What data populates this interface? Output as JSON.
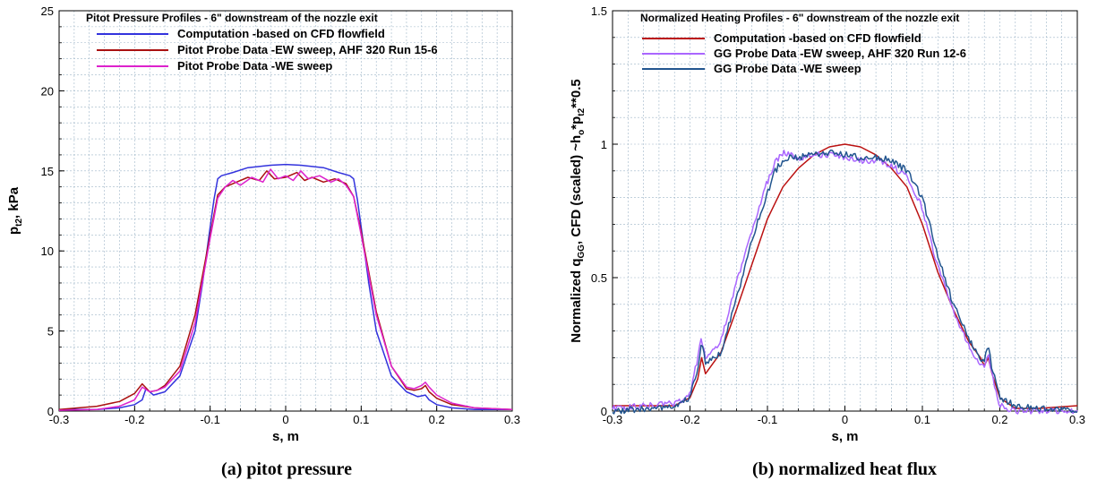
{
  "chart_data": [
    {
      "type": "line",
      "title": "Pitot Pressure Profiles - 6\" downstream of the nozzle exit",
      "caption": "(a) pitot pressure",
      "xlabel": "s, m",
      "ylabel_main": "p",
      "ylabel_sub": "t2",
      "ylabel_rest": ", kPa",
      "xlim": [
        -0.3,
        0.3
      ],
      "ylim": [
        0,
        25
      ],
      "xticks": [
        -0.3,
        -0.2,
        -0.1,
        0,
        0.1,
        0.2,
        0.3
      ],
      "xtick_labels": [
        "-0.3",
        "-0.2",
        "-0.1",
        "0",
        "0.1",
        "0.2",
        "0.3"
      ],
      "yticks": [
        0,
        5,
        10,
        15,
        20,
        25
      ],
      "ytick_labels": [
        "0",
        "5",
        "10",
        "15",
        "20",
        "25"
      ],
      "grid": true,
      "legend_position": "top-right",
      "series": [
        {
          "name": "Computation -based on CFD flowfield",
          "color": "#3333dd",
          "x": [
            -0.3,
            -0.25,
            -0.22,
            -0.2,
            -0.19,
            -0.185,
            -0.175,
            -0.16,
            -0.14,
            -0.12,
            -0.11,
            -0.1,
            -0.095,
            -0.09,
            -0.085,
            -0.07,
            -0.05,
            -0.02,
            0,
            0.02,
            0.05,
            0.07,
            0.085,
            0.09,
            0.095,
            0.1,
            0.11,
            0.12,
            0.14,
            0.16,
            0.175,
            0.185,
            0.19,
            0.2,
            0.22,
            0.25,
            0.3
          ],
          "y": [
            0.1,
            0.1,
            0.2,
            0.4,
            0.7,
            1.4,
            1.0,
            1.2,
            2.2,
            5.0,
            8.0,
            11.5,
            13.2,
            14.5,
            14.7,
            14.9,
            15.2,
            15.35,
            15.4,
            15.35,
            15.2,
            14.9,
            14.7,
            14.5,
            13.2,
            11.5,
            8.0,
            5.0,
            2.2,
            1.2,
            0.9,
            1.0,
            0.7,
            0.4,
            0.2,
            0.1,
            0.1
          ]
        },
        {
          "name": "Pitot Probe Data -EW sweep, AHF 320 Run 15-6",
          "color": "#aa1111",
          "x": [
            -0.3,
            -0.25,
            -0.22,
            -0.2,
            -0.19,
            -0.18,
            -0.17,
            -0.16,
            -0.14,
            -0.12,
            -0.1,
            -0.09,
            -0.08,
            -0.065,
            -0.05,
            -0.035,
            -0.025,
            -0.015,
            0,
            0.015,
            0.025,
            0.035,
            0.05,
            0.065,
            0.08,
            0.09,
            0.1,
            0.12,
            0.14,
            0.16,
            0.17,
            0.18,
            0.185,
            0.19,
            0.2,
            0.22,
            0.25,
            0.3
          ],
          "y": [
            0.1,
            0.3,
            0.6,
            1.1,
            1.7,
            1.2,
            1.3,
            1.6,
            2.8,
            6.0,
            11.0,
            13.5,
            14.0,
            14.3,
            14.6,
            14.4,
            15.0,
            14.5,
            14.6,
            14.9,
            14.4,
            14.6,
            14.3,
            14.5,
            14.2,
            13.4,
            11.2,
            6.2,
            2.8,
            1.4,
            1.3,
            1.4,
            1.6,
            1.2,
            0.8,
            0.4,
            0.2,
            0.1
          ]
        },
        {
          "name": "Pitot Probe Data -WE sweep",
          "color": "#dd22cc",
          "x": [
            -0.3,
            -0.25,
            -0.22,
            -0.2,
            -0.19,
            -0.18,
            -0.17,
            -0.16,
            -0.14,
            -0.12,
            -0.1,
            -0.09,
            -0.08,
            -0.07,
            -0.06,
            -0.045,
            -0.03,
            -0.02,
            -0.01,
            0,
            0.01,
            0.02,
            0.03,
            0.045,
            0.06,
            0.07,
            0.08,
            0.09,
            0.1,
            0.12,
            0.14,
            0.16,
            0.17,
            0.18,
            0.185,
            0.19,
            0.2,
            0.22,
            0.25,
            0.3
          ],
          "y": [
            0.05,
            0.1,
            0.3,
            0.7,
            1.5,
            1.2,
            1.3,
            1.5,
            2.5,
            5.5,
            10.8,
            13.3,
            14.0,
            14.4,
            14.1,
            14.6,
            14.3,
            15.1,
            14.5,
            14.7,
            14.4,
            15.0,
            14.5,
            14.7,
            14.3,
            14.5,
            14.1,
            13.4,
            11.0,
            6.0,
            2.8,
            1.5,
            1.4,
            1.6,
            1.8,
            1.5,
            1.0,
            0.5,
            0.2,
            0.1
          ]
        }
      ]
    },
    {
      "type": "line",
      "title": "Normalized Heating Profiles - 6\" downstream of the nozzle exit",
      "caption": "(b) normalized heat flux",
      "xlabel": "s, m",
      "ylabel_parts": [
        "Normalized q",
        "GG",
        ", CFD (scaled) ~h",
        "o",
        "*p",
        "t2",
        "**0.5"
      ],
      "xlim": [
        -0.3,
        0.3
      ],
      "ylim": [
        0,
        1.5
      ],
      "xticks": [
        -0.3,
        -0.2,
        -0.1,
        0,
        0.1,
        0.2,
        0.3
      ],
      "xtick_labels": [
        "-0.3",
        "-0.2",
        "-0.1",
        "0",
        "0.1",
        "0.2",
        "0.3"
      ],
      "yticks": [
        0,
        0.5,
        1,
        1.5
      ],
      "ytick_labels": [
        "0",
        "0.5",
        "1",
        "1.5"
      ],
      "grid": true,
      "legend_position": "top-right",
      "series": [
        {
          "name": "Computation -based on CFD flowfield",
          "color": "#bb1111",
          "noise": 0,
          "x": [
            -0.3,
            -0.25,
            -0.22,
            -0.2,
            -0.19,
            -0.185,
            -0.18,
            -0.16,
            -0.14,
            -0.12,
            -0.1,
            -0.08,
            -0.06,
            -0.04,
            -0.02,
            0,
            0.02,
            0.04,
            0.06,
            0.08,
            0.1,
            0.12,
            0.14,
            0.16,
            0.175,
            0.18,
            0.185,
            0.19,
            0.2,
            0.22,
            0.25,
            0.3
          ],
          "y": [
            0.02,
            0.02,
            0.02,
            0.05,
            0.12,
            0.2,
            0.14,
            0.22,
            0.38,
            0.55,
            0.72,
            0.84,
            0.91,
            0.96,
            0.99,
            1.0,
            0.99,
            0.96,
            0.91,
            0.84,
            0.7,
            0.52,
            0.38,
            0.26,
            0.2,
            0.17,
            0.2,
            0.14,
            0.05,
            0.01,
            0.01,
            0.02
          ]
        },
        {
          "name": "GG Probe Data -EW sweep, AHF 320 Run 12-6",
          "color": "#aa66ff",
          "noise": 0.012,
          "x": [
            -0.3,
            -0.25,
            -0.22,
            -0.2,
            -0.19,
            -0.185,
            -0.18,
            -0.16,
            -0.14,
            -0.12,
            -0.1,
            -0.09,
            -0.08,
            -0.07,
            -0.06,
            -0.04,
            -0.02,
            0,
            0.02,
            0.04,
            0.06,
            0.08,
            0.1,
            0.12,
            0.14,
            0.16,
            0.175,
            0.18,
            0.185,
            0.19,
            0.2,
            0.22,
            0.25,
            0.3
          ],
          "y": [
            0.01,
            0.02,
            0.03,
            0.06,
            0.2,
            0.27,
            0.2,
            0.26,
            0.48,
            0.68,
            0.86,
            0.93,
            0.97,
            0.96,
            0.95,
            0.96,
            0.96,
            0.95,
            0.94,
            0.94,
            0.92,
            0.88,
            0.76,
            0.54,
            0.38,
            0.24,
            0.18,
            0.17,
            0.22,
            0.13,
            0.02,
            0.0,
            0.0,
            0.0
          ]
        },
        {
          "name": "GG Probe Data -WE sweep",
          "color": "#22558f",
          "noise": 0.012,
          "x": [
            -0.3,
            -0.25,
            -0.22,
            -0.2,
            -0.19,
            -0.185,
            -0.18,
            -0.16,
            -0.14,
            -0.12,
            -0.1,
            -0.09,
            -0.08,
            -0.07,
            -0.06,
            -0.04,
            -0.02,
            0,
            0.02,
            0.04,
            0.06,
            0.08,
            0.1,
            0.12,
            0.14,
            0.16,
            0.175,
            0.18,
            0.185,
            0.19,
            0.2,
            0.22,
            0.25,
            0.3
          ],
          "y": [
            0.0,
            0.01,
            0.02,
            0.05,
            0.16,
            0.25,
            0.18,
            0.22,
            0.42,
            0.64,
            0.82,
            0.9,
            0.94,
            0.95,
            0.95,
            0.96,
            0.97,
            0.96,
            0.95,
            0.95,
            0.94,
            0.9,
            0.8,
            0.58,
            0.4,
            0.27,
            0.2,
            0.19,
            0.24,
            0.16,
            0.05,
            0.02,
            0.01,
            0.0
          ]
        }
      ]
    }
  ]
}
